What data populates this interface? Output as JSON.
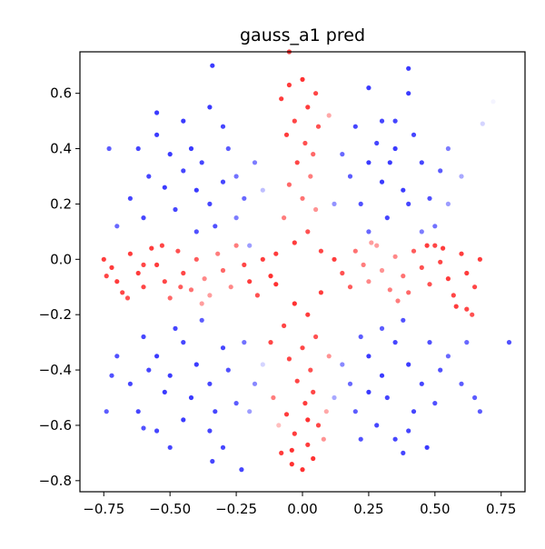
{
  "chart_data": {
    "type": "scatter",
    "title": "gauss_a1 pred",
    "xlabel": "",
    "ylabel": "",
    "xlim": [
      -0.84,
      0.84
    ],
    "ylim": [
      -0.84,
      0.75
    ],
    "xticks": [
      -0.75,
      -0.5,
      -0.25,
      0.0,
      0.25,
      0.5,
      0.75
    ],
    "xtick_labels": [
      "−0.75",
      "−0.50",
      "−0.25",
      "0.00",
      "0.25",
      "0.50",
      "0.75"
    ],
    "yticks": [
      -0.8,
      -0.6,
      -0.4,
      -0.2,
      0.0,
      0.2,
      0.4,
      0.6
    ],
    "ytick_labels": [
      "−0.8",
      "−0.6",
      "−0.4",
      "−0.2",
      "0.0",
      "0.2",
      "0.4",
      "0.6"
    ],
    "grid": false,
    "legend": false,
    "colormap": [
      "#0000ff",
      "#ffffff",
      "#ff0000"
    ],
    "value_range": [
      -1,
      1
    ],
    "points": [
      [
        -0.05,
        0.63,
        0.9
      ],
      [
        0.0,
        0.65,
        0.95
      ],
      [
        0.05,
        0.6,
        0.85
      ],
      [
        -0.08,
        0.58,
        0.9
      ],
      [
        0.02,
        0.55,
        0.9
      ],
      [
        -0.03,
        0.5,
        0.85
      ],
      [
        0.06,
        0.48,
        0.8
      ],
      [
        -0.06,
        0.45,
        0.9
      ],
      [
        0.01,
        0.42,
        0.8
      ],
      [
        0.04,
        0.38,
        0.7
      ],
      [
        -0.02,
        0.35,
        0.85
      ],
      [
        0.03,
        0.3,
        0.6
      ],
      [
        -0.05,
        0.27,
        0.7
      ],
      [
        0.0,
        0.22,
        0.65
      ],
      [
        0.05,
        0.18,
        0.5
      ],
      [
        -0.07,
        0.15,
        0.6
      ],
      [
        0.02,
        0.1,
        0.8
      ],
      [
        -0.03,
        0.06,
        0.9
      ],
      [
        0.07,
        0.03,
        0.85
      ],
      [
        -0.1,
        0.02,
        0.9
      ],
      [
        -0.05,
        0.75,
        0.9
      ],
      [
        0.1,
        0.52,
        0.4
      ],
      [
        -0.04,
        -0.74,
        0.95
      ],
      [
        0.0,
        -0.76,
        0.95
      ],
      [
        0.04,
        -0.72,
        0.95
      ],
      [
        -0.08,
        -0.7,
        0.9
      ],
      [
        0.02,
        -0.67,
        0.9
      ],
      [
        -0.03,
        -0.63,
        0.9
      ],
      [
        0.06,
        -0.6,
        0.85
      ],
      [
        -0.06,
        -0.56,
        0.9
      ],
      [
        0.01,
        -0.52,
        0.9
      ],
      [
        0.04,
        -0.48,
        0.85
      ],
      [
        -0.02,
        -0.44,
        0.85
      ],
      [
        0.03,
        -0.4,
        0.8
      ],
      [
        -0.05,
        -0.36,
        0.85
      ],
      [
        0.0,
        -0.32,
        0.85
      ],
      [
        0.05,
        -0.28,
        0.8
      ],
      [
        -0.07,
        -0.24,
        0.85
      ],
      [
        0.02,
        -0.2,
        0.9
      ],
      [
        -0.03,
        -0.16,
        0.95
      ],
      [
        0.07,
        -0.12,
        0.9
      ],
      [
        -0.1,
        -0.09,
        0.95
      ],
      [
        -0.12,
        -0.3,
        0.85
      ],
      [
        0.1,
        -0.35,
        0.5
      ],
      [
        -0.11,
        -0.5,
        0.6
      ],
      [
        0.09,
        -0.55,
        0.4
      ],
      [
        -0.09,
        -0.6,
        0.3
      ],
      [
        0.08,
        -0.65,
        0.5
      ],
      [
        -0.04,
        -0.69,
        0.95
      ],
      [
        0.02,
        -0.58,
        0.95
      ],
      [
        -0.75,
        0.0,
        0.9
      ],
      [
        -0.72,
        -0.03,
        0.9
      ],
      [
        -0.7,
        -0.08,
        0.9
      ],
      [
        -0.68,
        -0.12,
        0.85
      ],
      [
        -0.65,
        0.02,
        0.9
      ],
      [
        -0.62,
        -0.05,
        0.9
      ],
      [
        -0.6,
        -0.1,
        0.85
      ],
      [
        -0.57,
        0.04,
        0.9
      ],
      [
        -0.55,
        -0.02,
        0.9
      ],
      [
        -0.52,
        -0.08,
        0.85
      ],
      [
        -0.5,
        -0.14,
        0.7
      ],
      [
        -0.47,
        0.03,
        0.8
      ],
      [
        -0.45,
        -0.05,
        0.85
      ],
      [
        -0.42,
        -0.11,
        0.65
      ],
      [
        -0.4,
        0.0,
        0.75
      ],
      [
        -0.37,
        -0.07,
        0.55
      ],
      [
        -0.35,
        -0.13,
        0.45
      ],
      [
        -0.32,
        0.02,
        0.6
      ],
      [
        -0.3,
        -0.04,
        0.7
      ],
      [
        -0.27,
        -0.1,
        0.55
      ],
      [
        -0.25,
        0.05,
        0.6
      ],
      [
        -0.22,
        -0.02,
        0.85
      ],
      [
        -0.2,
        -0.08,
        0.9
      ],
      [
        -0.17,
        -0.13,
        0.8
      ],
      [
        -0.15,
        0.0,
        0.9
      ],
      [
        -0.12,
        -0.06,
        0.95
      ],
      [
        -0.74,
        -0.06,
        0.85
      ],
      [
        -0.66,
        -0.14,
        0.8
      ],
      [
        -0.6,
        -0.02,
        0.85
      ],
      [
        -0.53,
        0.05,
        0.85
      ],
      [
        -0.46,
        -0.1,
        0.75
      ],
      [
        -0.38,
        -0.16,
        0.45
      ],
      [
        0.12,
        0.0,
        0.9
      ],
      [
        0.15,
        -0.05,
        0.8
      ],
      [
        0.18,
        -0.1,
        0.75
      ],
      [
        0.2,
        0.03,
        0.65
      ],
      [
        0.23,
        -0.02,
        0.6
      ],
      [
        0.25,
        -0.08,
        0.55
      ],
      [
        0.28,
        0.05,
        0.45
      ],
      [
        0.3,
        -0.04,
        0.5
      ],
      [
        0.33,
        -0.11,
        0.6
      ],
      [
        0.35,
        0.01,
        0.55
      ],
      [
        0.38,
        -0.06,
        0.65
      ],
      [
        0.4,
        -0.12,
        0.7
      ],
      [
        0.42,
        0.03,
        0.75
      ],
      [
        0.45,
        -0.03,
        0.8
      ],
      [
        0.48,
        -0.09,
        0.8
      ],
      [
        0.5,
        0.05,
        0.85
      ],
      [
        0.52,
        -0.01,
        0.85
      ],
      [
        0.55,
        -0.07,
        0.9
      ],
      [
        0.57,
        -0.13,
        0.85
      ],
      [
        0.6,
        0.02,
        0.9
      ],
      [
        0.62,
        -0.05,
        0.9
      ],
      [
        0.65,
        -0.1,
        0.85
      ],
      [
        0.67,
        0.0,
        0.9
      ],
      [
        0.58,
        -0.17,
        0.9
      ],
      [
        0.62,
        -0.18,
        0.85
      ],
      [
        0.64,
        -0.2,
        0.8
      ],
      [
        0.53,
        0.04,
        0.9
      ],
      [
        0.47,
        0.05,
        0.9
      ],
      [
        0.36,
        -0.15,
        0.6
      ],
      [
        0.26,
        0.06,
        0.45
      ],
      [
        -0.55,
        0.45,
        -0.9
      ],
      [
        -0.5,
        0.38,
        -0.9
      ],
      [
        -0.45,
        0.32,
        -0.85
      ],
      [
        -0.4,
        0.25,
        -0.9
      ],
      [
        -0.35,
        0.2,
        -0.85
      ],
      [
        -0.3,
        0.28,
        -0.85
      ],
      [
        -0.42,
        0.4,
        -0.9
      ],
      [
        -0.48,
        0.18,
        -0.85
      ],
      [
        -0.52,
        0.26,
        -0.9
      ],
      [
        -0.38,
        0.35,
        -0.85
      ],
      [
        -0.33,
        0.12,
        -0.8
      ],
      [
        -0.28,
        0.4,
        -0.75
      ],
      [
        -0.22,
        0.22,
        -0.7
      ],
      [
        -0.18,
        0.35,
        -0.6
      ],
      [
        -0.25,
        0.15,
        -0.6
      ],
      [
        -0.58,
        0.3,
        -0.85
      ],
      [
        -0.6,
        0.15,
        -0.85
      ],
      [
        -0.65,
        0.22,
        -0.85
      ],
      [
        -0.7,
        0.12,
        -0.7
      ],
      [
        -0.62,
        0.4,
        -0.85
      ],
      [
        -0.45,
        0.5,
        -0.9
      ],
      [
        -0.35,
        0.55,
        -0.9
      ],
      [
        -0.3,
        0.48,
        -0.85
      ],
      [
        -0.55,
        0.53,
        -0.9
      ],
      [
        -0.25,
        0.3,
        -0.65
      ],
      [
        -0.2,
        0.05,
        -0.45
      ],
      [
        -0.15,
        0.25,
        -0.3
      ],
      [
        -0.73,
        0.4,
        -0.75
      ],
      [
        -0.34,
        0.7,
        -0.9
      ],
      [
        -0.4,
        0.1,
        -0.8
      ],
      [
        0.25,
        0.35,
        -0.9
      ],
      [
        0.3,
        0.28,
        -0.9
      ],
      [
        0.35,
        0.4,
        -0.9
      ],
      [
        0.4,
        0.2,
        -0.85
      ],
      [
        0.45,
        0.35,
        -0.85
      ],
      [
        0.32,
        0.15,
        -0.85
      ],
      [
        0.38,
        0.25,
        -0.9
      ],
      [
        0.42,
        0.45,
        -0.85
      ],
      [
        0.28,
        0.42,
        -0.85
      ],
      [
        0.22,
        0.2,
        -0.8
      ],
      [
        0.18,
        0.3,
        -0.75
      ],
      [
        0.48,
        0.22,
        -0.8
      ],
      [
        0.52,
        0.32,
        -0.75
      ],
      [
        0.5,
        0.12,
        -0.65
      ],
      [
        0.55,
        0.4,
        -0.6
      ],
      [
        0.3,
        0.5,
        -0.85
      ],
      [
        0.2,
        0.48,
        -0.85
      ],
      [
        0.15,
        0.38,
        -0.7
      ],
      [
        0.12,
        0.2,
        -0.5
      ],
      [
        0.4,
        0.6,
        -0.9
      ],
      [
        0.35,
        0.5,
        -0.85
      ],
      [
        0.25,
        0.1,
        -0.7
      ],
      [
        0.45,
        0.1,
        -0.6
      ],
      [
        0.55,
        0.2,
        -0.45
      ],
      [
        0.6,
        0.3,
        -0.4
      ],
      [
        0.25,
        0.62,
        -0.9
      ],
      [
        0.4,
        0.69,
        -0.9
      ],
      [
        0.72,
        0.57,
        -0.05
      ],
      [
        0.68,
        0.49,
        -0.2
      ],
      [
        0.33,
        0.35,
        -0.9
      ],
      [
        -0.55,
        -0.35,
        -0.9
      ],
      [
        -0.5,
        -0.42,
        -0.9
      ],
      [
        -0.45,
        -0.3,
        -0.85
      ],
      [
        -0.4,
        -0.38,
        -0.9
      ],
      [
        -0.35,
        -0.45,
        -0.85
      ],
      [
        -0.3,
        -0.32,
        -0.85
      ],
      [
        -0.42,
        -0.5,
        -0.9
      ],
      [
        -0.48,
        -0.25,
        -0.85
      ],
      [
        -0.52,
        -0.48,
        -0.9
      ],
      [
        -0.38,
        -0.22,
        -0.75
      ],
      [
        -0.33,
        -0.55,
        -0.85
      ],
      [
        -0.28,
        -0.4,
        -0.8
      ],
      [
        -0.22,
        -0.3,
        -0.65
      ],
      [
        -0.18,
        -0.45,
        -0.55
      ],
      [
        -0.25,
        -0.52,
        -0.75
      ],
      [
        -0.58,
        -0.4,
        -0.85
      ],
      [
        -0.6,
        -0.28,
        -0.85
      ],
      [
        -0.65,
        -0.45,
        -0.85
      ],
      [
        -0.7,
        -0.35,
        -0.8
      ],
      [
        -0.62,
        -0.55,
        -0.85
      ],
      [
        -0.45,
        -0.58,
        -0.9
      ],
      [
        -0.35,
        -0.62,
        -0.85
      ],
      [
        -0.3,
        -0.68,
        -0.85
      ],
      [
        -0.55,
        -0.62,
        -0.85
      ],
      [
        -0.72,
        -0.42,
        -0.8
      ],
      [
        -0.6,
        -0.61,
        -0.8
      ],
      [
        -0.34,
        -0.73,
        -0.85
      ],
      [
        -0.23,
        -0.76,
        -0.85
      ],
      [
        -0.74,
        -0.55,
        -0.75
      ],
      [
        -0.5,
        -0.68,
        -0.85
      ],
      [
        -0.2,
        -0.55,
        -0.45
      ],
      [
        -0.15,
        -0.38,
        -0.2
      ],
      [
        0.25,
        -0.35,
        -0.9
      ],
      [
        0.3,
        -0.42,
        -0.9
      ],
      [
        0.35,
        -0.3,
        -0.85
      ],
      [
        0.4,
        -0.38,
        -0.9
      ],
      [
        0.45,
        -0.45,
        -0.85
      ],
      [
        0.32,
        -0.5,
        -0.85
      ],
      [
        0.38,
        -0.22,
        -0.8
      ],
      [
        0.42,
        -0.55,
        -0.85
      ],
      [
        0.28,
        -0.6,
        -0.85
      ],
      [
        0.22,
        -0.28,
        -0.75
      ],
      [
        0.18,
        -0.45,
        -0.7
      ],
      [
        0.48,
        -0.3,
        -0.8
      ],
      [
        0.52,
        -0.4,
        -0.8
      ],
      [
        0.5,
        -0.52,
        -0.8
      ],
      [
        0.55,
        -0.35,
        -0.7
      ],
      [
        0.3,
        -0.25,
        -0.75
      ],
      [
        0.2,
        -0.55,
        -0.75
      ],
      [
        0.15,
        -0.38,
        -0.55
      ],
      [
        0.12,
        -0.5,
        -0.4
      ],
      [
        0.4,
        -0.62,
        -0.85
      ],
      [
        0.35,
        -0.65,
        -0.85
      ],
      [
        0.25,
        -0.48,
        -0.9
      ],
      [
        0.6,
        -0.45,
        -0.75
      ],
      [
        0.65,
        -0.5,
        -0.75
      ],
      [
        0.62,
        -0.3,
        -0.7
      ],
      [
        0.78,
        -0.3,
        -0.8
      ],
      [
        0.67,
        -0.55,
        -0.75
      ],
      [
        0.47,
        -0.68,
        -0.9
      ],
      [
        0.38,
        -0.7,
        -0.85
      ],
      [
        0.22,
        -0.65,
        -0.8
      ]
    ]
  }
}
